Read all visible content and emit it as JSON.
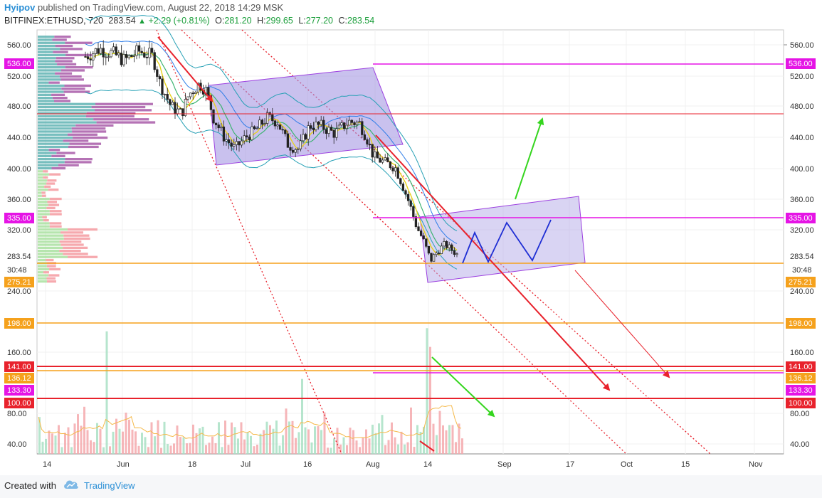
{
  "header": {
    "author": "Hyipov",
    "published": "published on TradingView.com, August 22, 2018 14:29 MSK",
    "symbol": "BITFINEX:ETHUSD, 720",
    "last": "283.54",
    "change": "+2.29 (+0.81%)",
    "open_label": "O:",
    "open": "281.20",
    "high_label": "H:",
    "high": "299.65",
    "low_label": "L:",
    "low": "277.20",
    "close_label": "C:",
    "close": "283.54"
  },
  "footer": {
    "created_with": "Created with",
    "brand": "TradingView"
  },
  "colors": {
    "red": "#e8222c",
    "magenta": "#e514e5",
    "orange": "#f5a11c",
    "blue": "#1e2ed4",
    "green": "#35d51e",
    "box_fill": "#9c8ee0",
    "box_border": "#9c3fe0"
  },
  "chart_data": {
    "type": "candlestick",
    "y_scale": "price",
    "ylim": [
      25,
      578
    ],
    "y_ticks": [
      "560.00",
      "520.00",
      "480.00",
      "440.00",
      "400.00",
      "360.00",
      "320.00",
      "283.54",
      "30:48",
      "240.00",
      "160.00",
      "80.00",
      "40.00"
    ],
    "x_ticks": [
      "14",
      "Jun",
      "18",
      "Jul",
      "16",
      "Aug",
      "14",
      "Sep",
      "17",
      "Oct",
      "15",
      "Nov"
    ],
    "price_tags": [
      {
        "label": "536.00",
        "value": 536,
        "color": "#e514e5",
        "side": "both"
      },
      {
        "label": "335.00",
        "value": 335,
        "color": "#e514e5",
        "side": "both"
      },
      {
        "label": "275.21",
        "value": 275.21,
        "color": "#f5a11c",
        "side": "both"
      },
      {
        "label": "198.00",
        "value": 198,
        "color": "#f5a11c",
        "side": "both"
      },
      {
        "label": "141.00",
        "value": 141,
        "color": "#e8222c",
        "side": "both"
      },
      {
        "label": "136.12",
        "value": 136.12,
        "color": "#f5a11c",
        "side": "both"
      },
      {
        "label": "133.30",
        "value": 133.3,
        "color": "#e514e5",
        "side": "both"
      },
      {
        "label": "100.00",
        "value": 100,
        "color": "#e8222c",
        "side": "both"
      }
    ],
    "last_price": 283.54,
    "countdown": "30:48"
  }
}
